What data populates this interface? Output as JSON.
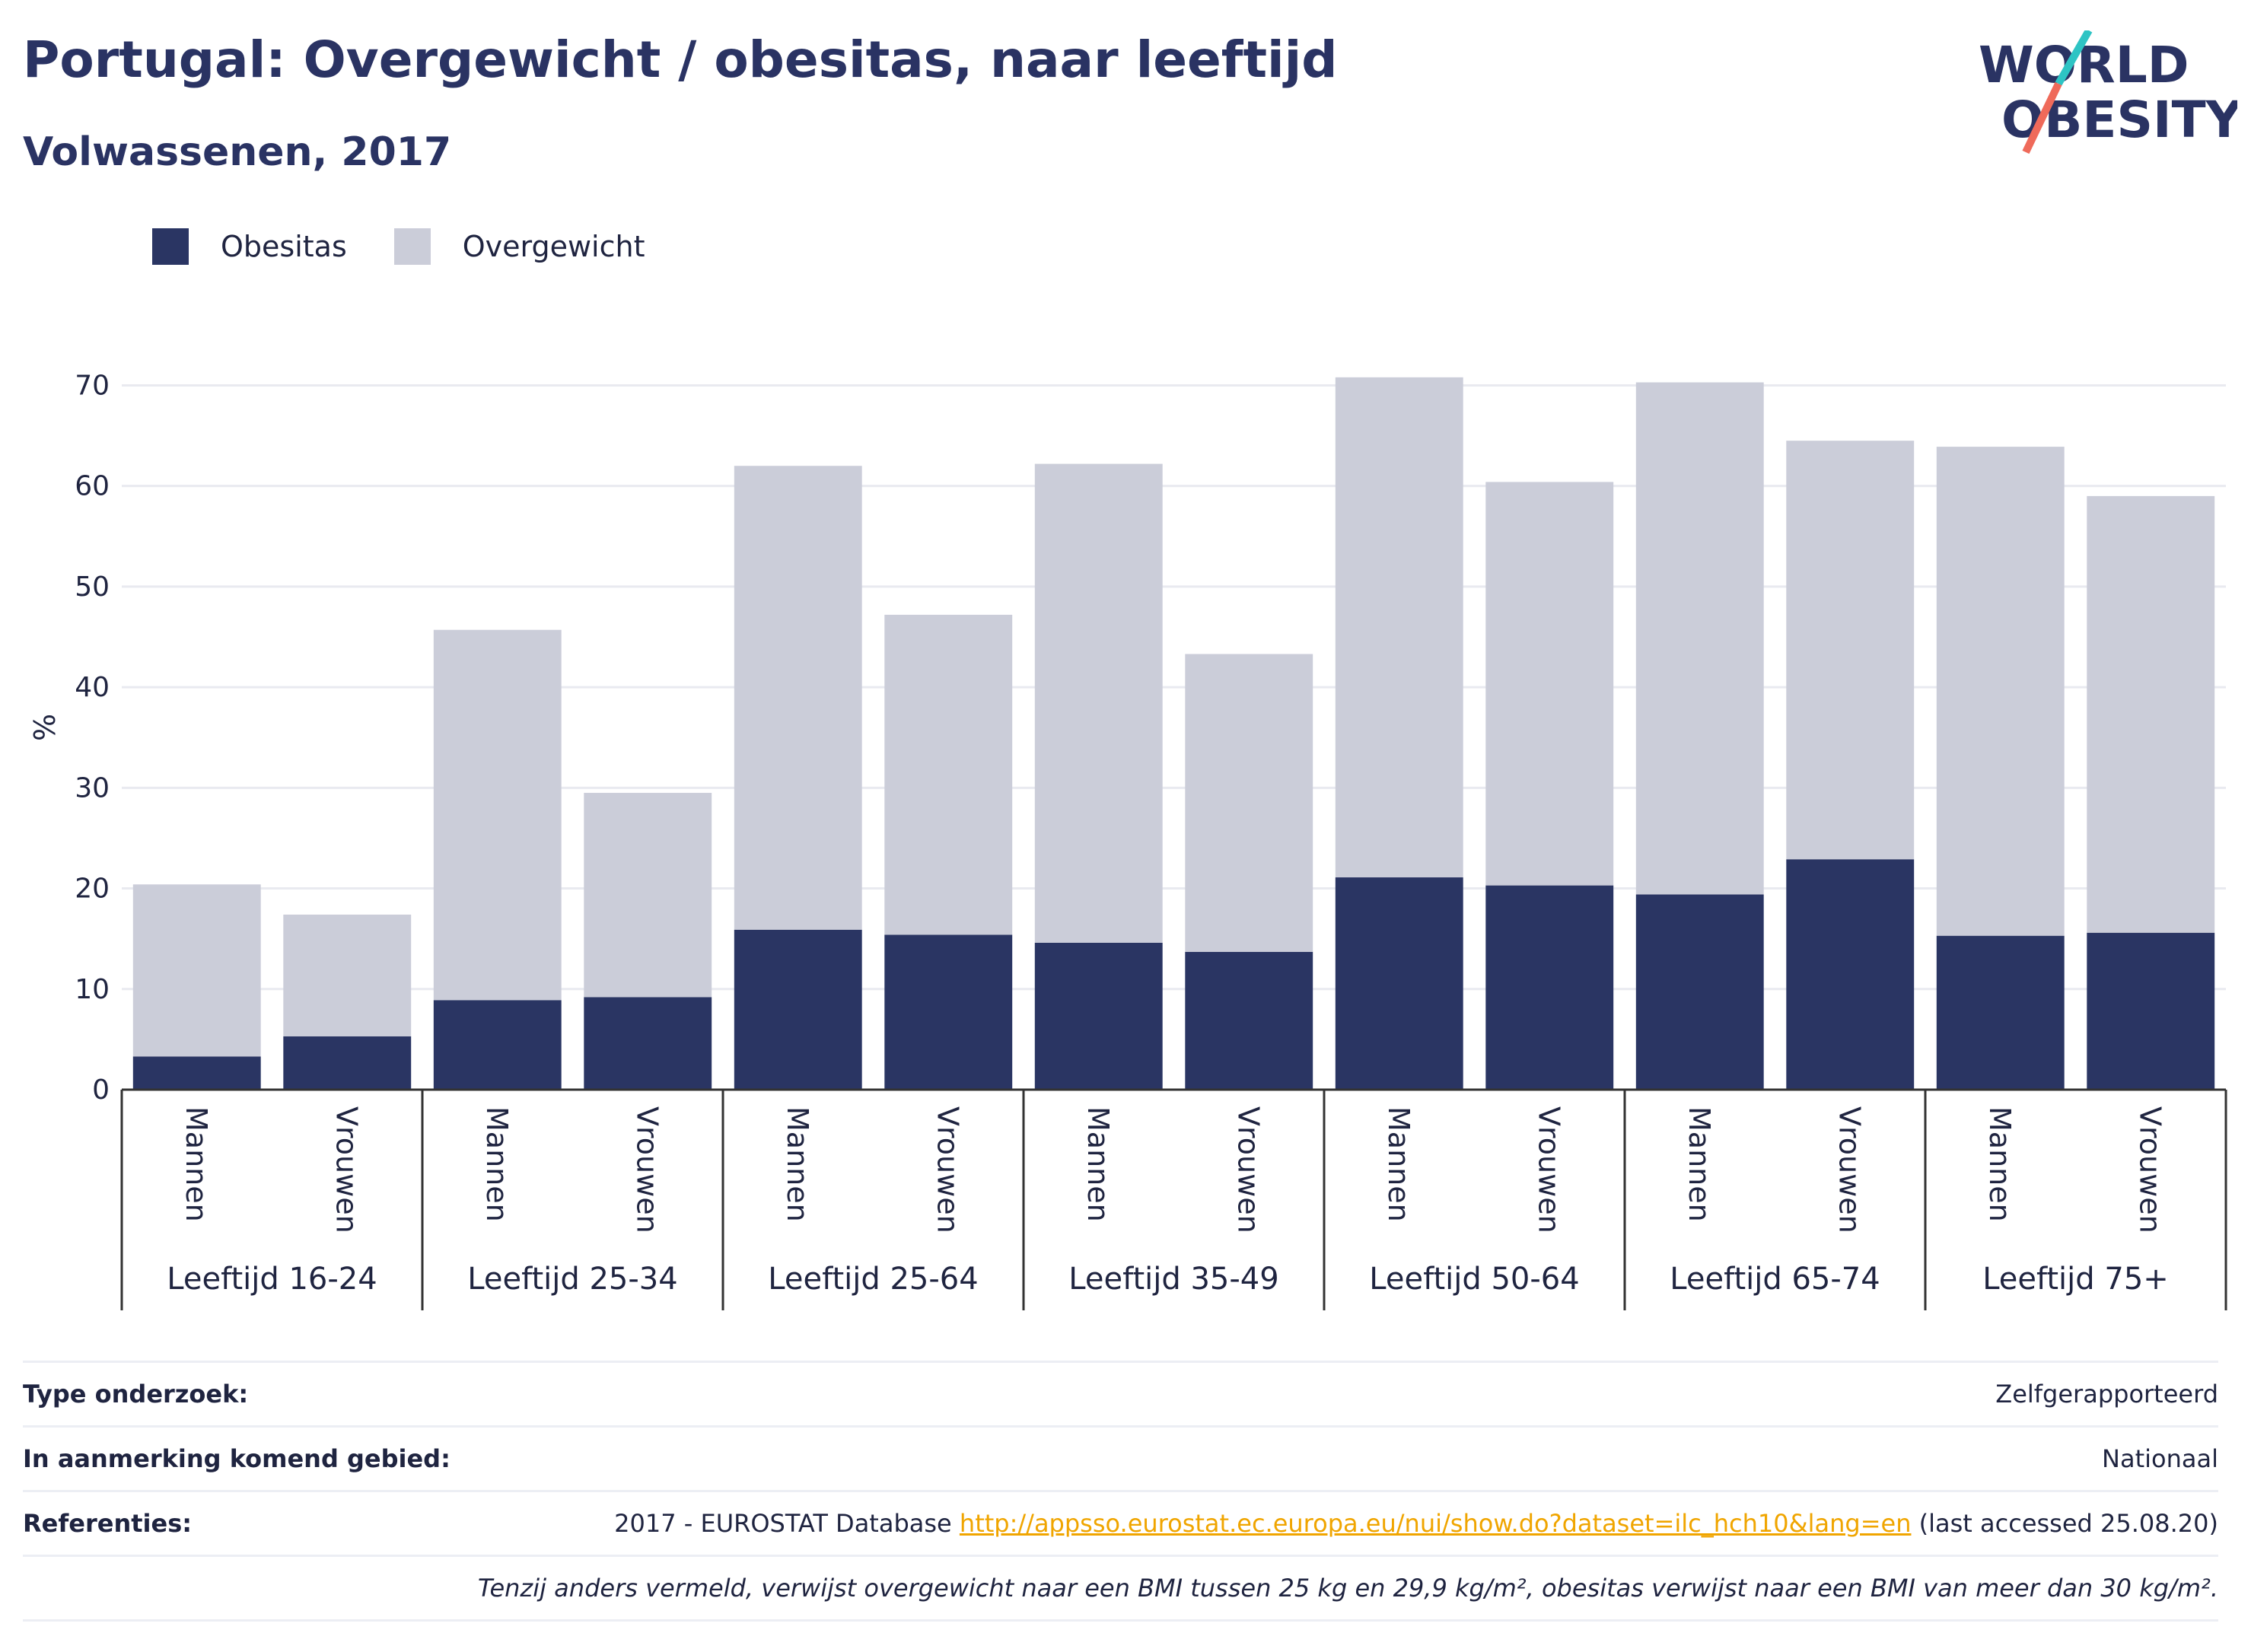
{
  "header": {
    "title": "Portugal: Overgewicht / obesitas, naar leeftijd",
    "subtitle": "Volwassenen, 2017"
  },
  "logo": {
    "line1": "WORLD",
    "line2": "OBESITY"
  },
  "legend": [
    {
      "label": "Obesitas",
      "color": "#2a3563"
    },
    {
      "label": "Overgewicht",
      "color": "#cbcdd9"
    }
  ],
  "chart_data": {
    "type": "bar",
    "stacked": true,
    "ylabel": "%",
    "ylim": [
      0,
      72
    ],
    "yticks": [
      0,
      10,
      20,
      30,
      40,
      50,
      60,
      70
    ],
    "grid": true,
    "legend_position": "top-left",
    "groups": [
      "Leeftijd 16-24",
      "Leeftijd 25-34",
      "Leeftijd 25-64",
      "Leeftijd 35-49",
      "Leeftijd 50-64",
      "Leeftijd 65-74",
      "Leeftijd 75+"
    ],
    "subcategories": [
      "Mannen",
      "Vrouwen"
    ],
    "series": [
      {
        "name": "Obesitas",
        "color": "#2a3563",
        "values": [
          3.3,
          5.3,
          8.9,
          9.2,
          15.9,
          15.4,
          14.6,
          13.7,
          21.1,
          20.3,
          19.4,
          22.9,
          15.3,
          15.6
        ]
      },
      {
        "name": "Overgewicht",
        "color": "#cbcdd9",
        "values": [
          17.1,
          12.1,
          36.8,
          20.3,
          46.1,
          31.8,
          47.6,
          29.6,
          49.7,
          40.1,
          50.9,
          41.6,
          48.6,
          43.4
        ]
      }
    ]
  },
  "info": {
    "survey_label": "Type onderzoek:",
    "survey_value": "Zelfgerapporteerd",
    "area_label": "In aanmerking komend gebied:",
    "area_value": "Nationaal",
    "ref_label": "Referenties:",
    "ref_prefix": "2017 - EUROSTAT Database ",
    "ref_link": "http://appsso.eurostat.ec.europa.eu/nui/show.do?dataset=ilc_hch10&lang=en",
    "ref_suffix": " (last accessed 25.08.20)",
    "note": "Tenzij anders vermeld, verwijst overgewicht naar een BMI tussen 25 kg en 29,9 kg/m², obesitas verwijst naar een BMI van meer dan 30 kg/m²."
  }
}
